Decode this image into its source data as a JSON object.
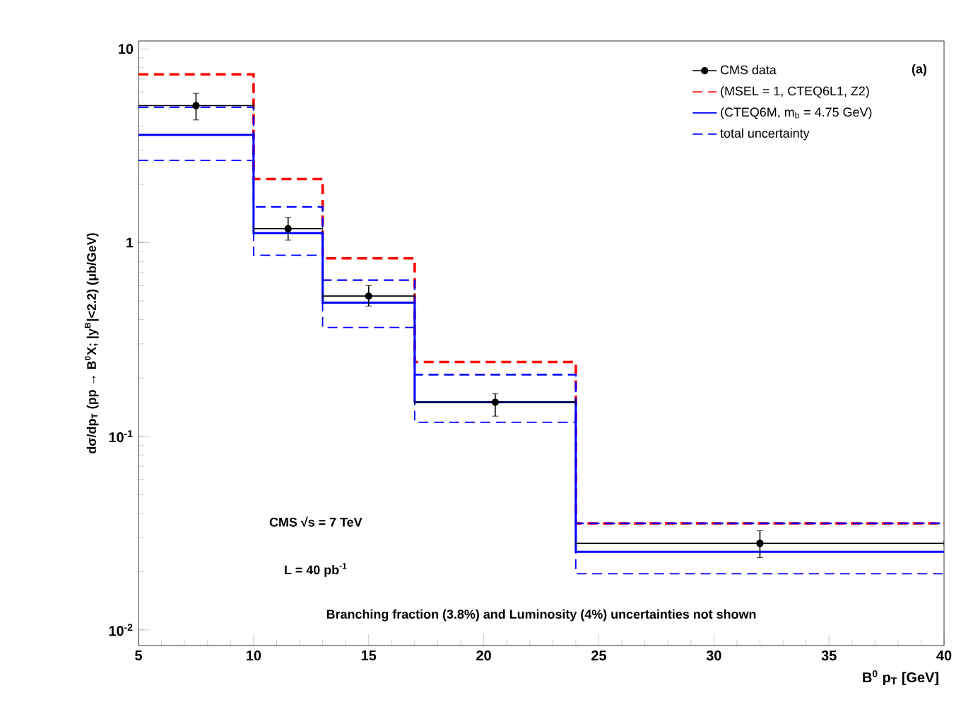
{
  "chart_data": {
    "type": "step",
    "xlabel": "B$^{0}$ p$_{T}$ [GeV]",
    "ylabel": "dσ/dp$_{T}$ (pp → B$^{0}$X; |y$^{B}$|<2.2) (μb/GeV)",
    "log": "y",
    "xlim": [
      5,
      40
    ],
    "ylim": [
      0.0083,
      11
    ],
    "xticks": [
      5,
      10,
      15,
      20,
      25,
      30,
      35,
      40
    ],
    "yticks": [
      {
        "value": 0.01,
        "label": "10$^{-2}$"
      },
      {
        "value": 0.1,
        "label": "10$^{-1}$"
      },
      {
        "value": 1,
        "label": "1"
      },
      {
        "value": 10,
        "label": "10"
      }
    ],
    "legend": "top right",
    "grid": false,
    "series": [
      {
        "name": "CMS data",
        "type": "scatter",
        "color": "#000000",
        "marker": "circle",
        "x": [
          7.5,
          11.5,
          15,
          20.5,
          32
        ],
        "values": [
          5.1,
          1.18,
          0.53,
          0.15,
          0.028
        ],
        "errors": [
          [
            4.3,
            5.9
          ],
          [
            1.03,
            1.35
          ],
          [
            0.47,
            0.6
          ],
          [
            0.127,
            0.166
          ],
          [
            0.0236,
            0.0325
          ]
        ],
        "xerrors": [
          2.5,
          1.5,
          2,
          3.5,
          8
        ]
      },
      {
        "name": "(MSEL = 1, CTEQ6L1, Z2)",
        "color": "#ff0000",
        "line_style": "dashed",
        "x": [
          5,
          10,
          13,
          17,
          24,
          40
        ],
        "values": [
          7.4,
          2.13,
          0.83,
          0.242,
          0.0355,
          0.0355
        ]
      },
      {
        "name": "(CTEQ6M, m$_{b}$ = 4.75 GeV)",
        "color": "#0000ff",
        "line_style": "solid",
        "x": [
          5,
          10,
          13,
          17,
          24,
          40
        ],
        "values": [
          3.6,
          1.12,
          0.49,
          0.15,
          0.0253,
          0.0253
        ]
      },
      {
        "name": "total uncertainty",
        "color": "#0000ff",
        "line_style": "dashed",
        "x": [
          5,
          10,
          13,
          17,
          24,
          40
        ],
        "values": [
          5.0,
          1.53,
          0.64,
          0.208,
          0.0355,
          0.0355
        ]
      },
      {
        "color": "#0000ff",
        "line_style": "dashed",
        "x": [
          5,
          10,
          13,
          17,
          24,
          40
        ],
        "values": [
          2.66,
          0.86,
          0.365,
          0.118,
          0.0195,
          0.0195
        ]
      }
    ],
    "annotations": [
      "(a)",
      "CMS  √s = 7 TeV",
      "L = 40 pb$^{-1}$",
      "Branching fraction (3.8%) and Luminosity (4%) uncertainties not shown"
    ]
  }
}
